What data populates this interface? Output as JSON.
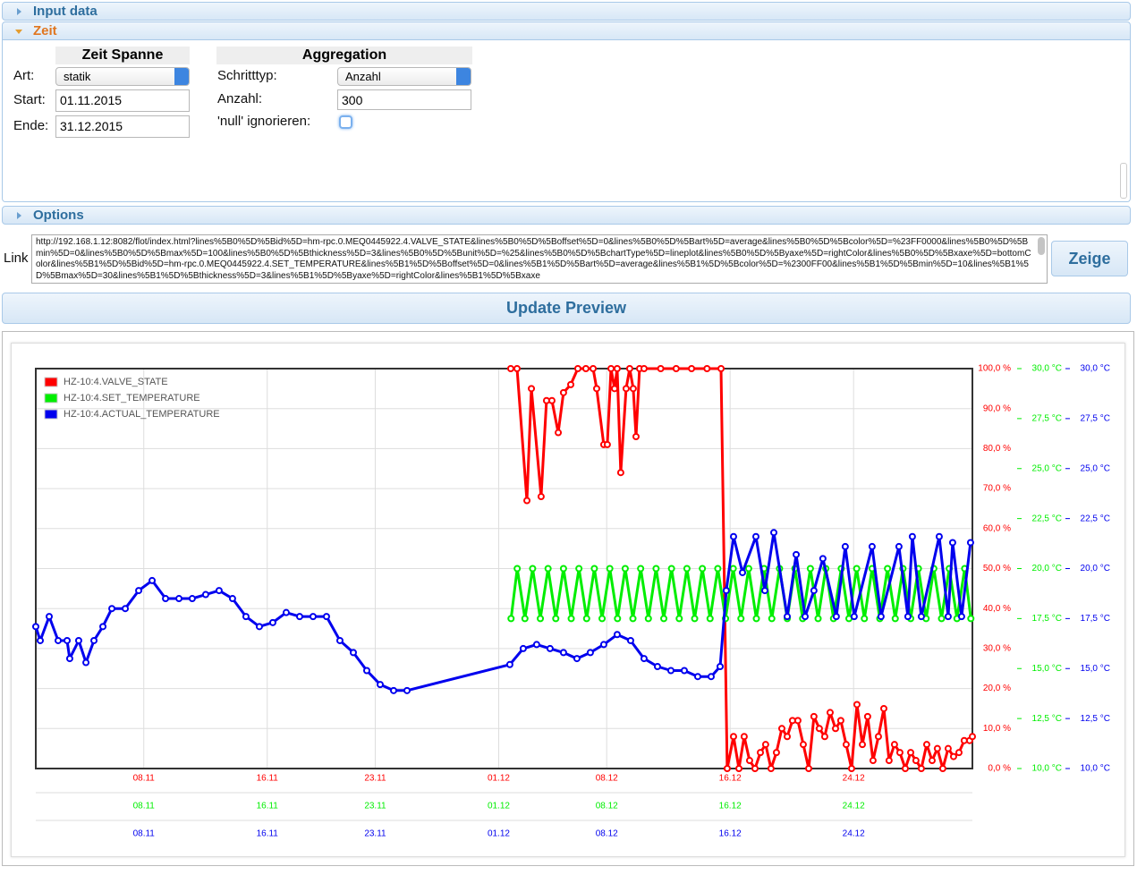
{
  "ui": {
    "sections": [
      "Input data",
      "Zeit",
      "Options"
    ],
    "zeit_spanne": {
      "title": "Zeit Spanne",
      "fields": [
        {
          "label": "Art:",
          "value": "statik"
        },
        {
          "label": "Start:",
          "value": "01.11.2015"
        },
        {
          "label": "Ende:",
          "value": "31.12.2015"
        }
      ]
    },
    "aggregation": {
      "title": "Aggregation",
      "fields": [
        {
          "label": "Schritttyp:",
          "value": "Anzahl"
        },
        {
          "label": "Anzahl:",
          "value": "300"
        },
        {
          "label": "'null' ignorieren:"
        }
      ]
    },
    "link": {
      "label": "Link",
      "url": "http://192.168.1.12:8082/flot/index.html?lines%5B0%5D%5Bid%5D=hm-rpc.0.MEQ0445922.4.VALVE_STATE&lines%5B0%5D%5Boffset%5D=0&lines%5B0%5D%5Bart%5D=average&lines%5B0%5D%5Bcolor%5D=%23FF0000&lines%5B0%5D%5Bmin%5D=0&lines%5B0%5D%5Bmax%5D=100&lines%5B0%5D%5Bthickness%5D=3&lines%5B0%5D%5Bunit%5D=%25&lines%5B0%5D%5BchartType%5D=lineplot&lines%5B0%5D%5Byaxe%5D=rightColor&lines%5B0%5D%5Bxaxe%5D=bottomColor&lines%5B1%5D%5Bid%5D=hm-rpc.0.MEQ0445922.4.SET_TEMPERATURE&lines%5B1%5D%5Boffset%5D=0&lines%5B1%5D%5Bart%5D=average&lines%5B1%5D%5Bcolor%5D=%2300FF00&lines%5B1%5D%5Bmin%5D=10&lines%5B1%5D%5Bmax%5D=30&lines%5B1%5D%5Bthickness%5D=3&lines%5B1%5D%5Byaxe%5D=rightColor&lines%5B1%5D%5Bxaxe"
    },
    "buttons": {
      "show": "Zeige",
      "update": "Update Preview"
    }
  },
  "chart_data": {
    "type": "line",
    "legend": "upper left",
    "grid": true,
    "xlim": [
      0,
      60.7
    ],
    "xticks": [
      {
        "value": 7,
        "label": "08.11"
      },
      {
        "value": 15,
        "label": "16.11"
      },
      {
        "value": 22,
        "label": "23.11"
      },
      {
        "value": 30,
        "label": "01.12"
      },
      {
        "value": 37,
        "label": "08.12"
      },
      {
        "value": 45,
        "label": "16.12"
      },
      {
        "value": 53,
        "label": "24.12"
      }
    ],
    "ylim": [
      0,
      100
    ],
    "yticks": [
      {
        "value": 0,
        "label": "0,0 %"
      },
      {
        "value": 10,
        "label": "10,0 %"
      },
      {
        "value": 20,
        "label": "20,0 %"
      },
      {
        "value": 30,
        "label": "30,0 %"
      },
      {
        "value": 40,
        "label": "40,0 %"
      },
      {
        "value": 50,
        "label": "50,0 %"
      },
      {
        "value": 60,
        "label": "60,0 %"
      },
      {
        "value": 70,
        "label": "70,0 %"
      },
      {
        "value": 80,
        "label": "80,0 %"
      },
      {
        "value": 90,
        "label": "90,0 %"
      },
      {
        "value": 100,
        "label": "100,0 %"
      }
    ],
    "y2lim": [
      10,
      30
    ],
    "y2ticks": [
      {
        "value": 10,
        "label": "10,0 °C"
      },
      {
        "value": 12.5,
        "label": "12,5 °C"
      },
      {
        "value": 15,
        "label": "15,0 °C"
      },
      {
        "value": 17.5,
        "label": "17,5 °C"
      },
      {
        "value": 20,
        "label": "20,0 °C"
      },
      {
        "value": 22.5,
        "label": "22,5 °C"
      },
      {
        "value": 25,
        "label": "25,0 °C"
      },
      {
        "value": 27.5,
        "label": "27,5 °C"
      },
      {
        "value": 30,
        "label": "30,0 °C"
      }
    ],
    "y3lim": [
      10,
      30
    ],
    "y3ticks": [
      {
        "value": 10,
        "label": "10,0 °C"
      },
      {
        "value": 12.5,
        "label": "12,5 °C"
      },
      {
        "value": 15,
        "label": "15,0 °C"
      },
      {
        "value": 17.5,
        "label": "17,5 °C"
      },
      {
        "value": 20,
        "label": "20,0 °C"
      },
      {
        "value": 22.5,
        "label": "22,5 °C"
      },
      {
        "value": 25,
        "label": "25,0 °C"
      },
      {
        "value": 27.5,
        "label": "27,5 °C"
      },
      {
        "value": 30,
        "label": "30,0 °C"
      }
    ],
    "series": [
      {
        "name": "HZ-10:4.VALVE_STATE",
        "color": "#ff0000",
        "axis": "y",
        "x": [
          30.78,
          31.19,
          31.83,
          32.12,
          32.75,
          33.1,
          33.45,
          33.86,
          34.2,
          34.67,
          35.13,
          35.65,
          36.12,
          36.35,
          36.81,
          37.04,
          37.28,
          37.51,
          37.68,
          37.91,
          38.26,
          38.49,
          38.72,
          38.9,
          39.13,
          39.42,
          40.5,
          41.5,
          42.5,
          43.5,
          44.41,
          44.81,
          45.22,
          45.57,
          45.91,
          46.26,
          46.61,
          46.96,
          47.3,
          47.65,
          48.0,
          48.35,
          48.7,
          49.04,
          49.39,
          49.74,
          50.09,
          50.43,
          50.78,
          51.13,
          51.48,
          51.83,
          52.17,
          52.52,
          52.87,
          53.22,
          53.57,
          53.91,
          54.26,
          54.61,
          54.96,
          55.3,
          55.65,
          56.0,
          56.35,
          56.7,
          57.04,
          57.39,
          57.74,
          58.09,
          58.43,
          58.78,
          59.13,
          59.48,
          59.83,
          60.17,
          60.52,
          60.7
        ],
        "values": [
          100,
          100,
          67,
          95,
          68,
          92,
          92,
          84,
          94,
          96,
          100,
          100,
          100,
          95,
          81,
          81,
          100,
          95,
          100,
          74,
          95,
          100,
          95,
          83,
          100,
          100,
          100,
          100,
          100,
          100,
          100,
          0,
          8,
          0,
          8,
          2,
          0,
          4,
          6,
          0,
          4,
          10,
          8,
          12,
          12,
          6,
          0,
          13,
          10,
          8,
          14,
          10,
          12,
          6,
          0,
          16,
          6,
          13,
          2,
          8,
          15,
          2,
          6,
          4,
          0,
          4,
          2,
          0,
          6,
          2,
          5,
          0,
          5,
          3,
          4,
          7,
          7,
          8
        ]
      },
      {
        "name": "HZ-10:4.SET_TEMPERATURE",
        "color": "#00ee00",
        "axis": "y2",
        "x": [
          30.8,
          31.2,
          31.7,
          32.2,
          32.7,
          33.2,
          33.7,
          34.2,
          34.7,
          35.2,
          35.7,
          36.2,
          36.7,
          37.2,
          37.7,
          38.2,
          38.7,
          39.2,
          39.7,
          40.2,
          40.7,
          41.2,
          41.7,
          42.2,
          42.7,
          43.2,
          43.7,
          44.2,
          44.7,
          45.2,
          45.7,
          46.2,
          46.7,
          47.2,
          47.7,
          48.2,
          48.7,
          49.2,
          49.7,
          50.2,
          50.7,
          51.2,
          51.7,
          52.2,
          52.7,
          53.2,
          53.7,
          54.2,
          54.7,
          55.2,
          55.7,
          56.2,
          56.7,
          57.2,
          57.7,
          58.2,
          58.7,
          59.2,
          59.7,
          60.2,
          60.6
        ],
        "values": [
          17.5,
          20,
          17.5,
          20,
          17.5,
          20,
          17.5,
          20,
          17.5,
          20,
          17.5,
          20,
          17.5,
          20,
          17.5,
          20,
          17.5,
          20,
          17.5,
          20,
          17.5,
          20,
          17.5,
          20,
          17.5,
          20,
          17.5,
          20,
          17.5,
          20,
          17.5,
          20,
          17.5,
          20,
          17.5,
          20,
          17.5,
          20,
          17.5,
          20,
          17.5,
          20,
          17.5,
          20,
          17.5,
          20,
          17.5,
          20,
          17.5,
          20,
          17.5,
          20,
          17.5,
          20,
          17.5,
          20,
          17.5,
          20,
          17.5,
          20,
          17.5
        ]
      },
      {
        "name": "HZ-10:4.ACTUAL_TEMPERATURE",
        "color": "#0000ee",
        "axis": "y3",
        "x": [
          0,
          0.29,
          0.87,
          1.45,
          2.03,
          2.2,
          2.78,
          3.25,
          3.77,
          4.35,
          4.93,
          5.8,
          6.67,
          7.54,
          8.41,
          9.28,
          10.14,
          11.01,
          11.88,
          12.75,
          13.62,
          14.49,
          15.36,
          16.23,
          17.1,
          17.97,
          18.84,
          19.71,
          20.58,
          21.45,
          22.32,
          23.19,
          24.06,
          30.72,
          31.59,
          32.46,
          33.33,
          34.2,
          35.07,
          35.94,
          36.81,
          37.68,
          38.55,
          39.42,
          40.29,
          41.16,
          42.03,
          42.9,
          43.77,
          44.35,
          44.75,
          45.22,
          45.8,
          46.67,
          47.25,
          47.83,
          48.7,
          49.28,
          49.86,
          50.43,
          51.01,
          51.88,
          52.46,
          53.04,
          54.2,
          54.78,
          55.94,
          56.52,
          56.81,
          57.39,
          58.55,
          59.13,
          59.42,
          60.0,
          60.58
        ],
        "values": [
          17.1,
          16.4,
          17.6,
          16.4,
          16.4,
          15.5,
          16.4,
          15.3,
          16.4,
          17.1,
          18.0,
          18.0,
          18.9,
          19.4,
          18.5,
          18.5,
          18.5,
          18.7,
          18.9,
          18.5,
          17.6,
          17.1,
          17.3,
          17.8,
          17.6,
          17.6,
          17.6,
          16.4,
          15.8,
          14.9,
          14.2,
          13.9,
          13.9,
          15.2,
          16.0,
          16.2,
          16.0,
          15.8,
          15.5,
          15.8,
          16.2,
          16.7,
          16.4,
          15.5,
          15.1,
          14.9,
          14.9,
          14.6,
          14.6,
          15.1,
          18.9,
          21.6,
          19.8,
          21.6,
          18.9,
          21.8,
          17.6,
          20.7,
          17.6,
          18.9,
          20.5,
          17.6,
          21.1,
          17.6,
          21.1,
          17.6,
          21.1,
          17.6,
          21.6,
          17.6,
          21.6,
          17.6,
          21.3,
          17.6,
          21.3
        ]
      }
    ]
  }
}
